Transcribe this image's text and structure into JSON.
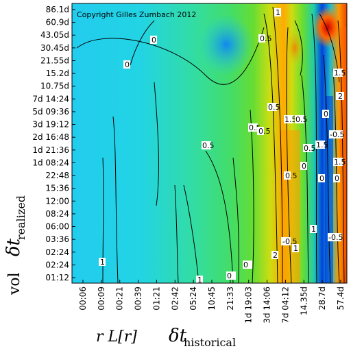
{
  "chart_data": {
    "type": "heatmap",
    "title": "",
    "watermark": "Copyright Gilles Zumbach 2012",
    "xlabel": {
      "prefix": "r L[r]",
      "symbol": "δt",
      "subscript": "historical"
    },
    "ylabel": {
      "prefix": "vol",
      "symbol": "δt",
      "subscript": "realized"
    },
    "x_ticks": [
      "00:06",
      "00:09",
      "00:21",
      "00:39",
      "01:21",
      "02:42",
      "05:24",
      "10:45",
      "21:33",
      "1d 19:03",
      "3d 14:06",
      "7d 04:12",
      "14.35d",
      "28.7d",
      "57.4d"
    ],
    "y_ticks": [
      "86.1d",
      "60.9d",
      "43.05d",
      "30.45d",
      "21.55d",
      "15.2d",
      "10.75d",
      "7d 14:24",
      "5d 09:36",
      "3d 19:12",
      "2d 16:48",
      "1d 21:36",
      "1d 08:24",
      "22:48",
      "15:36",
      "12:00",
      "08:24",
      "06:00",
      "03:36",
      "02:24",
      "02:24",
      "01:12"
    ],
    "contour_labels": [
      "1",
      "0",
      "0",
      "0.5",
      "1.5",
      "2",
      "0.5",
      "1.5",
      "0.5",
      "-0.5",
      "0.5",
      "0.5",
      "0.5",
      "1.5",
      "0",
      "1.5",
      "0",
      "-0.5",
      "0",
      "1",
      "-0.5",
      "1",
      "2",
      "1",
      "1",
      "0",
      "0",
      "0.5",
      "0.5",
      "0"
    ],
    "colors": {
      "low": "#0044dd",
      "mid_low": "#00ccee",
      "mid": "#22dd66",
      "mid_high": "#aadd00",
      "high": "#ff8800",
      "max": "#dd0000"
    }
  }
}
